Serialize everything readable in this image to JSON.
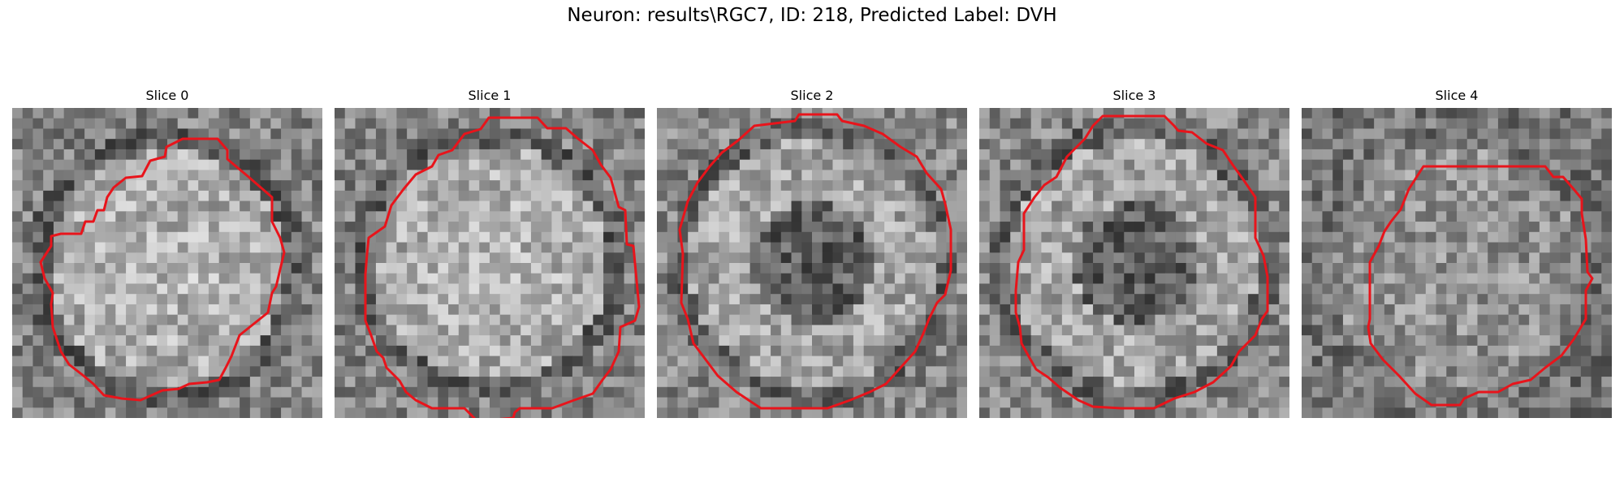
{
  "figure": {
    "title": "Neuron: results\\RGC7, ID: 218, Predicted Label: DVH"
  },
  "colors": {
    "contour": "#e8141b",
    "background": "#ffffff"
  },
  "grid_cells": 30,
  "panels": [
    {
      "title": "Slice 0",
      "ring": "bright",
      "center": [
        15.0,
        15.5
      ]
    },
    {
      "title": "Slice 1",
      "ring": "bright",
      "center": [
        15.0,
        15.0
      ]
    },
    {
      "title": "Slice 2",
      "ring": "bright-dark-core",
      "center": [
        15.0,
        15.0
      ]
    },
    {
      "title": "Slice 3",
      "ring": "bright-dark-core",
      "center": [
        15.0,
        15.0
      ]
    },
    {
      "title": "Slice 4",
      "ring": "faint",
      "center": [
        15.0,
        15.5
      ]
    }
  ]
}
